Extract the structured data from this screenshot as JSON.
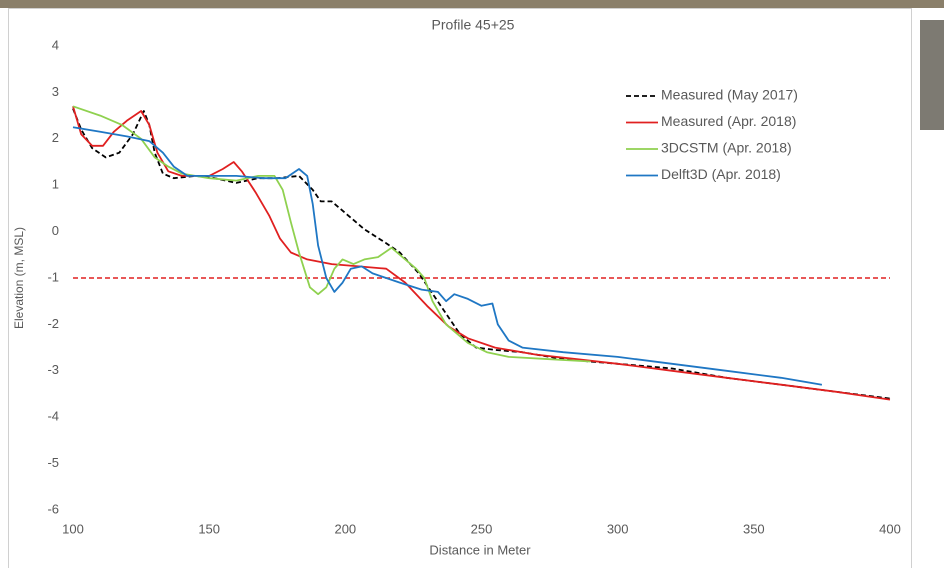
{
  "chart_data": {
    "type": "line",
    "title": "Profile 45+25",
    "x_label": "Distance in Meter",
    "y_label": "Elevation (m, MSL)",
    "xlim": [
      100,
      400
    ],
    "xticks": [
      100,
      150,
      200,
      250,
      300,
      350,
      400
    ],
    "ylim": [
      -6,
      4
    ],
    "yticks": [
      -6,
      -5,
      -4,
      -3,
      -2,
      -1,
      0,
      1,
      2,
      3,
      4
    ],
    "grid": false,
    "legend": "upper right",
    "reference_line": {
      "y": -1,
      "color": "#e02020",
      "style": "dashed"
    },
    "series": [
      {
        "name": "Measured (May 2017)",
        "color": "#000000",
        "style": "dashed",
        "x": [
          100,
          103,
          107,
          112,
          117,
          122,
          126,
          128,
          130,
          133,
          137,
          145,
          152,
          160,
          168,
          175,
          183,
          188,
          191,
          195,
          200,
          207,
          215,
          220,
          227,
          235,
          242,
          248,
          255,
          265,
          280,
          300,
          320,
          340,
          360,
          380,
          400
        ],
        "values": [
          2.65,
          2.2,
          1.8,
          1.6,
          1.7,
          2.1,
          2.6,
          2.3,
          1.7,
          1.25,
          1.15,
          1.2,
          1.15,
          1.05,
          1.15,
          1.15,
          1.2,
          0.9,
          0.65,
          0.65,
          0.4,
          0.05,
          -0.25,
          -0.45,
          -0.9,
          -1.6,
          -2.2,
          -2.5,
          -2.55,
          -2.6,
          -2.75,
          -2.85,
          -2.95,
          -3.15,
          -3.3,
          -3.45,
          -3.6
        ]
      },
      {
        "name": "Measured (Apr. 2018)",
        "color": "#e02020",
        "style": "solid",
        "x": [
          100,
          103,
          107,
          111,
          115,
          120,
          125,
          128,
          131,
          135,
          140,
          150,
          155,
          159,
          162,
          167,
          172,
          176,
          180,
          186,
          195,
          205,
          215,
          222,
          230,
          238,
          245,
          255,
          270,
          285,
          300,
          320,
          340,
          360,
          380,
          400
        ],
        "values": [
          2.7,
          2.1,
          1.85,
          1.85,
          2.15,
          2.4,
          2.6,
          2.3,
          1.7,
          1.3,
          1.2,
          1.2,
          1.35,
          1.5,
          1.3,
          0.85,
          0.35,
          -0.15,
          -0.45,
          -0.6,
          -0.7,
          -0.75,
          -0.8,
          -1.1,
          -1.6,
          -2.05,
          -2.3,
          -2.5,
          -2.65,
          -2.75,
          -2.85,
          -3.0,
          -3.15,
          -3.3,
          -3.45,
          -3.62
        ]
      },
      {
        "name": "3DCSTM (Apr. 2018)",
        "color": "#8fd14f",
        "style": "solid",
        "x": [
          100,
          110,
          118,
          125,
          130,
          135,
          140,
          150,
          160,
          168,
          174,
          177,
          180,
          183,
          187,
          190,
          193,
          196,
          199,
          203,
          207,
          212,
          217,
          222,
          226,
          229,
          232,
          237,
          245,
          252,
          260,
          275,
          290
        ],
        "values": [
          2.7,
          2.5,
          2.3,
          2.0,
          1.6,
          1.4,
          1.25,
          1.15,
          1.1,
          1.2,
          1.2,
          0.9,
          0.2,
          -0.45,
          -1.2,
          -1.35,
          -1.2,
          -0.8,
          -0.6,
          -0.7,
          -0.6,
          -0.55,
          -0.35,
          -0.6,
          -0.8,
          -1.0,
          -1.5,
          -2.0,
          -2.4,
          -2.6,
          -2.7,
          -2.75,
          -2.8
        ]
      },
      {
        "name": "Delft3D (Apr. 2018)",
        "color": "#1f77c4",
        "style": "solid",
        "x": [
          100,
          110,
          120,
          128,
          133,
          137,
          142,
          150,
          160,
          170,
          178,
          183,
          186,
          188,
          190,
          193,
          196,
          199,
          202,
          206,
          210,
          215,
          220,
          228,
          234,
          237,
          240,
          245,
          250,
          254,
          256,
          260,
          265,
          280,
          300,
          320,
          340,
          360,
          375
        ],
        "values": [
          2.25,
          2.15,
          2.05,
          1.95,
          1.7,
          1.4,
          1.2,
          1.2,
          1.2,
          1.15,
          1.15,
          1.35,
          1.2,
          0.6,
          -0.3,
          -1.0,
          -1.3,
          -1.1,
          -0.8,
          -0.75,
          -0.9,
          -1.0,
          -1.1,
          -1.25,
          -1.3,
          -1.5,
          -1.35,
          -1.45,
          -1.6,
          -1.55,
          -2.0,
          -2.35,
          -2.5,
          -2.6,
          -2.7,
          -2.85,
          -3.0,
          -3.15,
          -3.3
        ]
      }
    ]
  }
}
